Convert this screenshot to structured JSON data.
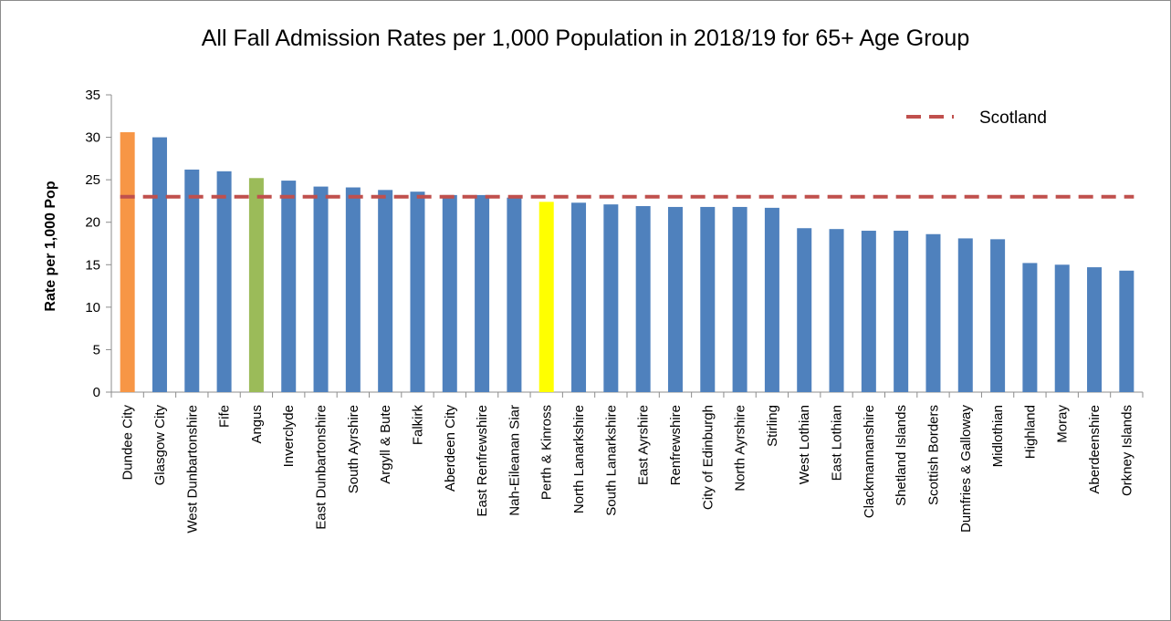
{
  "chart_data": {
    "type": "bar",
    "title": "All Fall Admission Rates per 1,000 Population in 2018/19 for 65+ Age Group",
    "ylabel": "Rate per 1,000  Pop",
    "xlabel": "",
    "ylim": [
      0,
      35
    ],
    "yticks": [
      0,
      5,
      10,
      15,
      20,
      25,
      30,
      35
    ],
    "grid": false,
    "legend_position": "top-right",
    "categories": [
      "Dundee City",
      "Glasgow City",
      "West Dunbartonshire",
      "Fife",
      "Angus",
      "Inverclyde",
      "East Dunbartonshire",
      "South Ayrshire",
      "Argyll & Bute",
      "Falkirk",
      "Aberdeen City",
      "East Renfrewshire",
      "Nah-Eileanan Siar",
      "Perth & Kinross",
      "North Lanarkshire",
      "South Lanarkshire",
      "East Ayrshire",
      "Renfrewshire",
      "City of Edinburgh",
      "North Ayrshire",
      "Stirling",
      "West Lothian",
      "East Lothian",
      "Clackmannanshire",
      "Shetland Islands",
      "Scottish Borders",
      "Dumfries & Galloway",
      "Midlothian",
      "Highland",
      "Moray",
      "Aberdeenshire",
      "Orkney Islands"
    ],
    "values": [
      30.6,
      30.0,
      26.2,
      26.0,
      25.2,
      24.9,
      24.2,
      24.1,
      23.8,
      23.6,
      23.2,
      23.2,
      22.9,
      22.4,
      22.3,
      22.1,
      21.9,
      21.8,
      21.8,
      21.8,
      21.7,
      19.3,
      19.2,
      19.0,
      19.0,
      18.6,
      18.1,
      18.0,
      15.2,
      15.0,
      14.7,
      14.3
    ],
    "colors": {
      "default": "#4f81bd",
      "Dundee City": "#f79646",
      "Angus": "#9bbb59",
      "Perth & Kinross": "#ffff00"
    },
    "reference_line": {
      "name": "Scotland",
      "value": 23.0,
      "color": "#c0504d"
    }
  }
}
